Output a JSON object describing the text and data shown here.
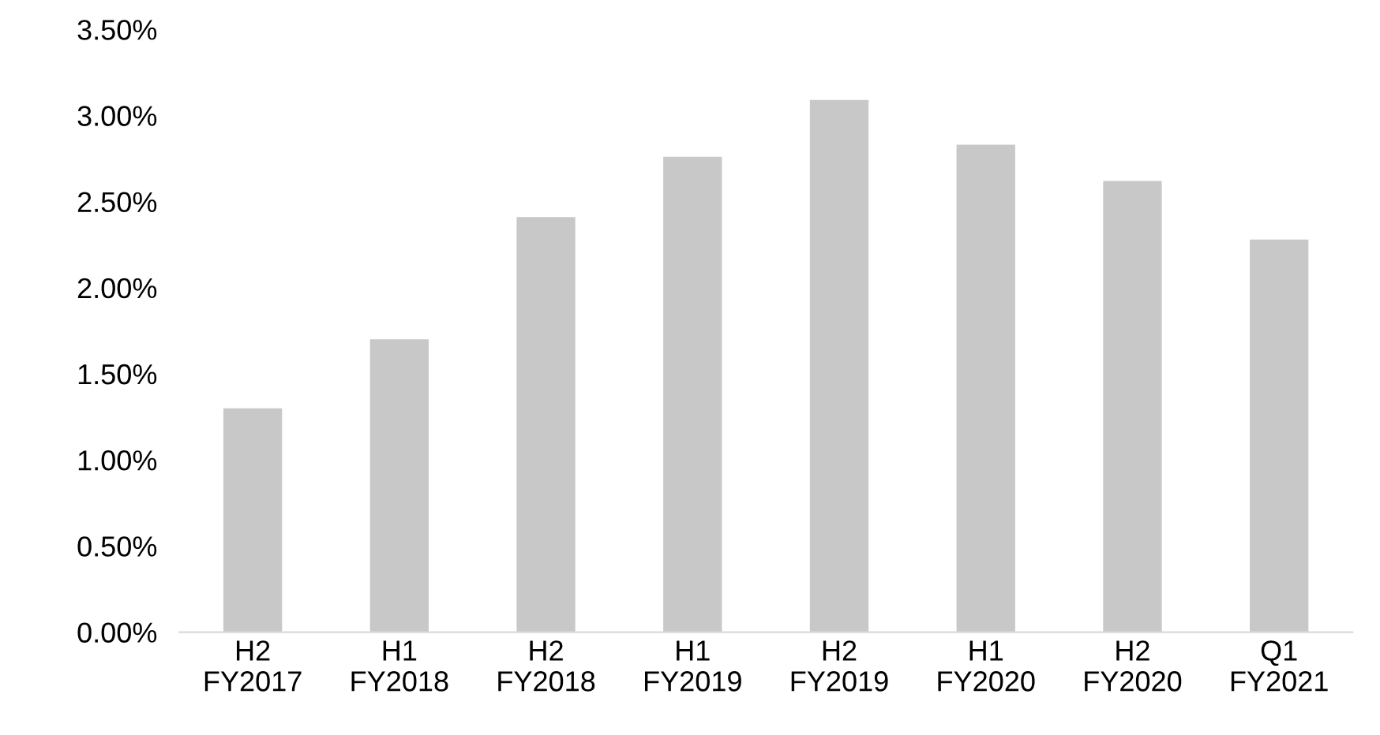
{
  "chart_data": {
    "type": "bar",
    "categories": [
      "H2\nFY2017",
      "H1\nFY2018",
      "H2\nFY2018",
      "H1\nFY2019",
      "H2\nFY2019",
      "H1\nFY2020",
      "H2\nFY2020",
      "Q1\nFY2021"
    ],
    "values": [
      1.3,
      1.7,
      2.41,
      2.76,
      3.09,
      2.83,
      2.62,
      2.28
    ],
    "color": "#c8c8c8",
    "ylim": [
      0,
      3.5
    ],
    "yticks": [
      {
        "value": 0,
        "label": "0.00%"
      },
      {
        "value": 0.5,
        "label": "0.50%"
      },
      {
        "value": 1,
        "label": "1.00%"
      },
      {
        "value": 1.5,
        "label": "1.50%"
      },
      {
        "value": 2,
        "label": "2.00%"
      },
      {
        "value": 2.5,
        "label": "2.50%"
      },
      {
        "value": 3,
        "label": "3.00%"
      },
      {
        "value": 3.5,
        "label": "3.50%"
      }
    ],
    "grid": false
  }
}
